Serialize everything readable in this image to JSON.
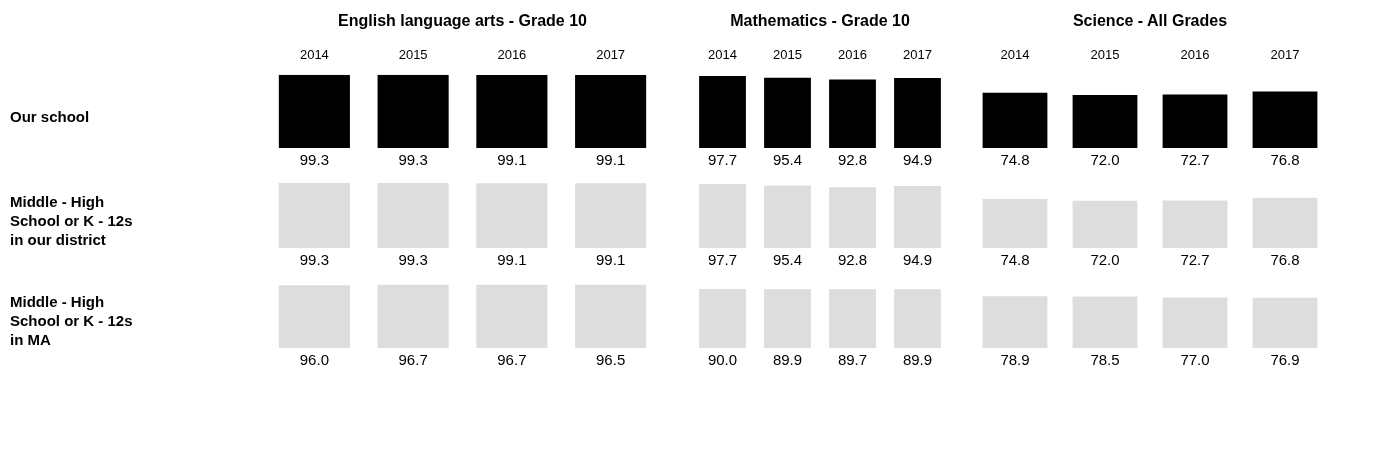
{
  "chart_data": [
    {
      "type": "bar",
      "title": "English language arts - Grade 10",
      "ylabel": "Our school",
      "categories": [
        "2014",
        "2015",
        "2016",
        "2017"
      ],
      "tick_labels": "x",
      "color": "#000000",
      "values": [
        99.3,
        99.3,
        99.1,
        99.1
      ],
      "value_labels": [
        "99.3",
        "99.3",
        "99.1",
        "99.1"
      ]
    },
    {
      "type": "bar",
      "title": "Mathematics - Grade 10",
      "categories": [
        "2014",
        "2015",
        "2016",
        "2017"
      ],
      "tick_labels": "x",
      "color": "#000000",
      "values": [
        97.7,
        95.4,
        92.8,
        94.9
      ],
      "value_labels": [
        "97.7",
        "95.4",
        "92.8",
        "94.9"
      ]
    },
    {
      "type": "bar",
      "title": "Science - All Grades",
      "categories": [
        "2014",
        "2015",
        "2016",
        "2017"
      ],
      "tick_labels": "x",
      "color": "#000000",
      "values": [
        74.8,
        72.0,
        72.7,
        76.8
      ],
      "value_labels": [
        "74.8",
        "72.0",
        "72.7",
        "76.8"
      ]
    },
    {
      "type": "bar",
      "ylabel": "Middle - High School or K - 12s in our district",
      "categories": [
        "2014",
        "2015",
        "2016",
        "2017"
      ],
      "tick_labels": false,
      "color": "#dddddd",
      "values": [
        99.3,
        99.3,
        99.1,
        99.1
      ],
      "value_labels": [
        "99.3",
        "99.3",
        "99.1",
        "99.1"
      ]
    },
    {
      "type": "bar",
      "categories": [
        "2014",
        "2015",
        "2016",
        "2017"
      ],
      "tick_labels": false,
      "color": "#dddddd",
      "values": [
        97.7,
        95.4,
        92.8,
        94.9
      ],
      "value_labels": [
        "97.7",
        "95.4",
        "92.8",
        "94.9"
      ]
    },
    {
      "type": "bar",
      "categories": [
        "2014",
        "2015",
        "2016",
        "2017"
      ],
      "tick_labels": false,
      "color": "#dddddd",
      "values": [
        74.8,
        72.0,
        72.7,
        76.8
      ],
      "value_labels": [
        "74.8",
        "72.0",
        "72.7",
        "76.8"
      ]
    },
    {
      "type": "bar",
      "ylabel": "Middle - High School or K - 12s in MA",
      "categories": [
        "2014",
        "2015",
        "2016",
        "2017"
      ],
      "tick_labels": false,
      "color": "#dddddd",
      "values": [
        96.0,
        96.7,
        96.7,
        96.5
      ],
      "value_labels": [
        "96.0",
        "96.7",
        "96.7",
        "96.5"
      ]
    },
    {
      "type": "bar",
      "categories": [
        "2014",
        "2015",
        "2016",
        "2017"
      ],
      "tick_labels": false,
      "color": "#dddddd",
      "values": [
        90.0,
        89.9,
        89.7,
        89.9
      ],
      "value_labels": [
        "90.0",
        "89.9",
        "89.7",
        "89.9"
      ]
    },
    {
      "type": "bar",
      "categories": [
        "2014",
        "2015",
        "2016",
        "2017"
      ],
      "tick_labels": false,
      "color": "#dddddd",
      "values": [
        78.9,
        78.5,
        77.0,
        76.9
      ],
      "value_labels": [
        "78.9",
        "78.5",
        "77.0",
        "76.9"
      ]
    }
  ]
}
